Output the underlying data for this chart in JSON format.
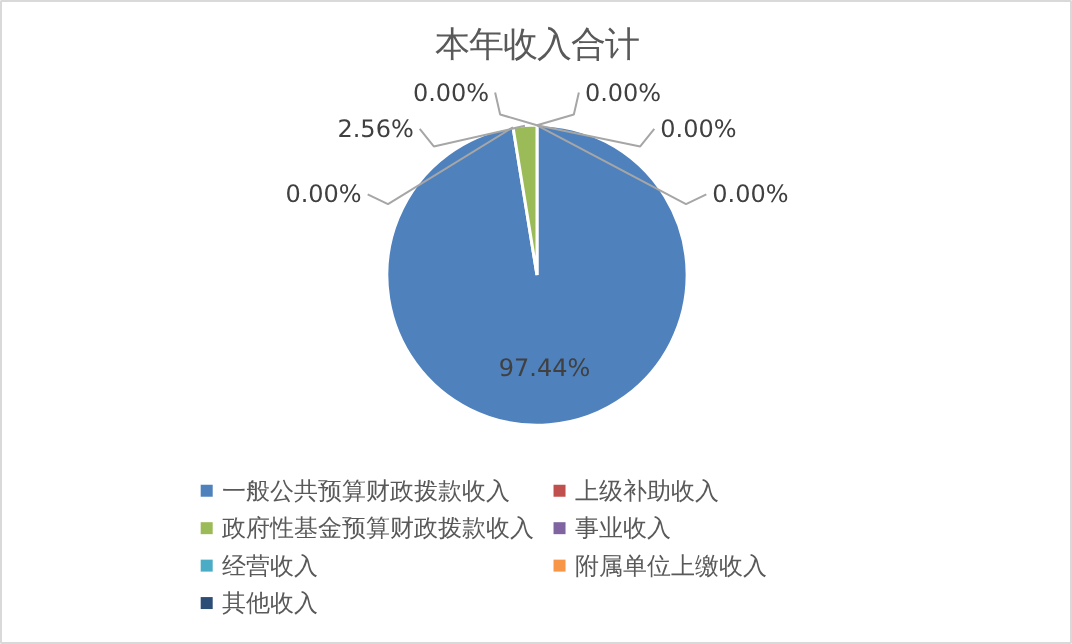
{
  "chart_data": {
    "type": "pie",
    "title": "本年收入合计",
    "categories": [
      "一般公共预算财政拨款收入",
      "上级补助收入",
      "政府性基金预算财政拨款收入",
      "事业收入",
      "经营收入",
      "附属单位上缴收入",
      "其他收入"
    ],
    "values": [
      97.44,
      0,
      2.56,
      0,
      0,
      0,
      0
    ],
    "value_labels": [
      "97.44%",
      "0.00%",
      "2.56%",
      "0.00%",
      "0.00%",
      "0.00%",
      "0.00%"
    ],
    "colors": [
      "#4f81bd",
      "#c0504d",
      "#9bbb59",
      "#8064a2",
      "#4bacc6",
      "#f79646",
      "#2c4d75"
    ],
    "legend": "bottom"
  }
}
